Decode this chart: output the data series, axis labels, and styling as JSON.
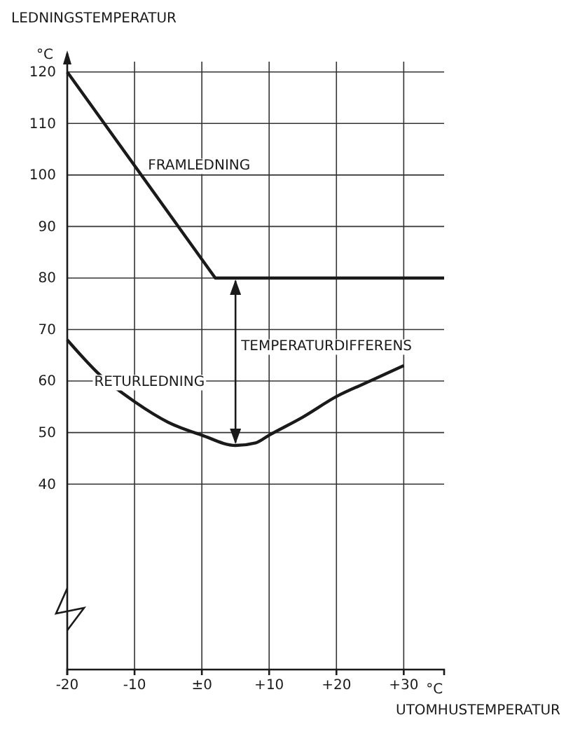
{
  "chart_data": {
    "type": "line",
    "ylabel": "LEDNINGSTEMPERATUR",
    "xlabel": "UTOMHUSTEMPERATUR",
    "x": [
      -20,
      2,
      36
    ],
    "series": [
      {
        "name": "FRAMLEDNING",
        "color": "#1a1a1a",
        "values": [
          120,
          80,
          80
        ]
      },
      {
        "name": "RETURLEDNING",
        "color": "#1a1a1a",
        "x": [
          -20,
          -15,
          -10,
          -5,
          0,
          5,
          8,
          10,
          15,
          20,
          25,
          30
        ],
        "values": [
          68,
          61,
          56,
          52,
          49.5,
          47.5,
          48,
          49.5,
          53,
          57,
          60,
          63
        ]
      }
    ],
    "annotations": [
      "°C",
      "°C",
      "TEMPERATURDIFFERENS"
    ],
    "xlim": [
      -20,
      36
    ],
    "ylim": [
      4,
      122
    ],
    "xticks": [
      -20,
      -10,
      {
        "value": 0,
        "label": "±0"
      },
      {
        "value": 10,
        "label": "+10"
      },
      {
        "value": 20,
        "label": "+20"
      },
      {
        "value": 30,
        "label": "+30"
      }
    ],
    "yticks": [
      40,
      50,
      60,
      70,
      80,
      90,
      100,
      110,
      120
    ],
    "grid": true,
    "marker": "none",
    "line_style": "solid"
  }
}
